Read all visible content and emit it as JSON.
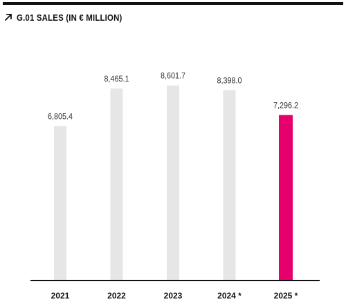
{
  "header": {
    "title": "G.01 SALES (IN € MILLION)",
    "icon": "arrow-up-right-icon"
  },
  "chart_data": {
    "type": "bar",
    "title": "G.01 SALES (IN € MILLION)",
    "xlabel": "",
    "ylabel": "",
    "categories": [
      "2021",
      "2022",
      "2023",
      "2024 *",
      "2025 *"
    ],
    "values": [
      6805.4,
      8465.1,
      8601.7,
      8398.0,
      7296.2
    ],
    "value_labels": [
      "6,805.4",
      "8,465.1",
      "8,601.7",
      "8,398.0",
      "7,296.2"
    ],
    "highlight_index": 4,
    "colors": {
      "bar": "#e6e6e6",
      "highlight": "#e5006d",
      "axis": "#111111",
      "text": "#333333"
    },
    "grid": false,
    "legend": "none"
  }
}
